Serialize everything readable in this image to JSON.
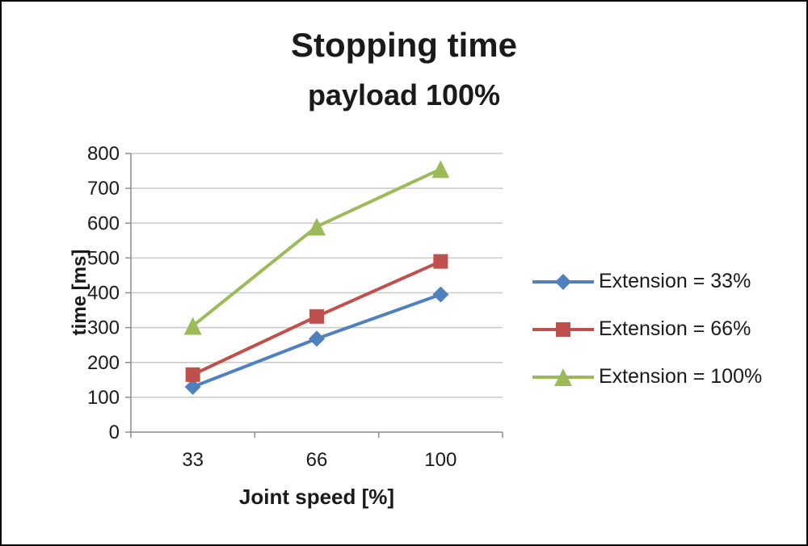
{
  "chart_data": {
    "type": "line",
    "title": "Stopping time",
    "subtitle": "payload 100%",
    "xlabel": "Joint speed [%]",
    "ylabel": "time [ms]",
    "categories": [
      "33",
      "66",
      "100"
    ],
    "series": [
      {
        "name": "Extension = 33%",
        "marker": "diamond",
        "color": "#4F81BD",
        "values": [
          130,
          268,
          395
        ]
      },
      {
        "name": "Extension = 66%",
        "marker": "square",
        "color": "#C0504D",
        "values": [
          165,
          332,
          490
        ]
      },
      {
        "name": "Extension = 100%",
        "marker": "triangle",
        "color": "#9BBB59",
        "values": [
          305,
          590,
          755
        ]
      }
    ],
    "ylim": [
      0,
      800
    ],
    "ytick_step": 100,
    "grid": "horizontal",
    "legend_position": "right",
    "axis_color": "#8c8c8c",
    "gridline_color": "#c9c9c9",
    "tick_text_color": "#1a1a1a"
  }
}
